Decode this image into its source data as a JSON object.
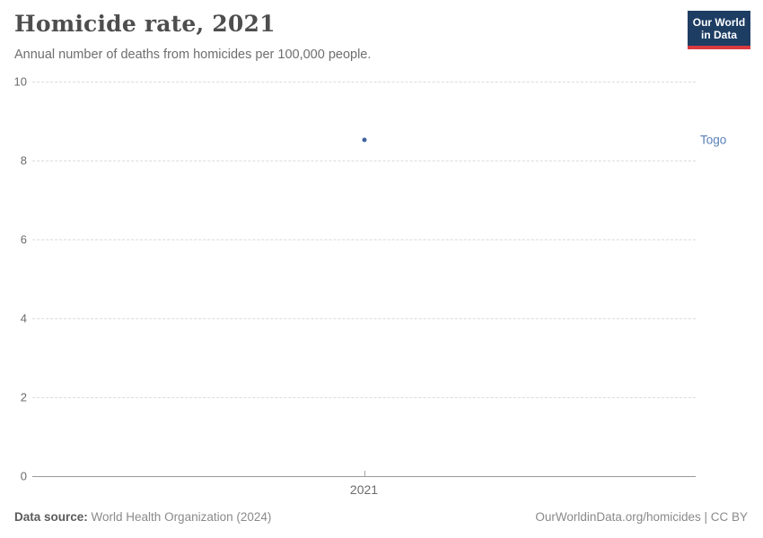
{
  "header": {
    "title": "Homicide rate, 2021",
    "subtitle": "Annual number of deaths from homicides per 100,000 people."
  },
  "logo": {
    "line1": "Our World",
    "line2": "in Data",
    "bg_color": "#1d3d63",
    "bar_color": "#d93a3f"
  },
  "footer": {
    "source_label": "Data source:",
    "source_text": " World Health Organization (2024)",
    "credit": "OurWorldinData.org/homicides | CC BY"
  },
  "chart_data": {
    "type": "scatter",
    "title": "Homicide rate, 2021",
    "subtitle": "Annual number of deaths from homicides per 100,000 people.",
    "x": [
      2021
    ],
    "xticks": [
      "2021"
    ],
    "series": [
      {
        "name": "Togo",
        "values": [
          8.53
        ]
      }
    ],
    "xlabel": "",
    "ylabel": "",
    "ylim": [
      0,
      10
    ],
    "yticks": [
      0,
      2,
      4,
      6,
      8,
      10
    ],
    "grid": "horizontal-dashed",
    "legend": "entity-label-right",
    "colors": {
      "point": "#3f63a0",
      "entity_label": "#577eb8"
    }
  }
}
